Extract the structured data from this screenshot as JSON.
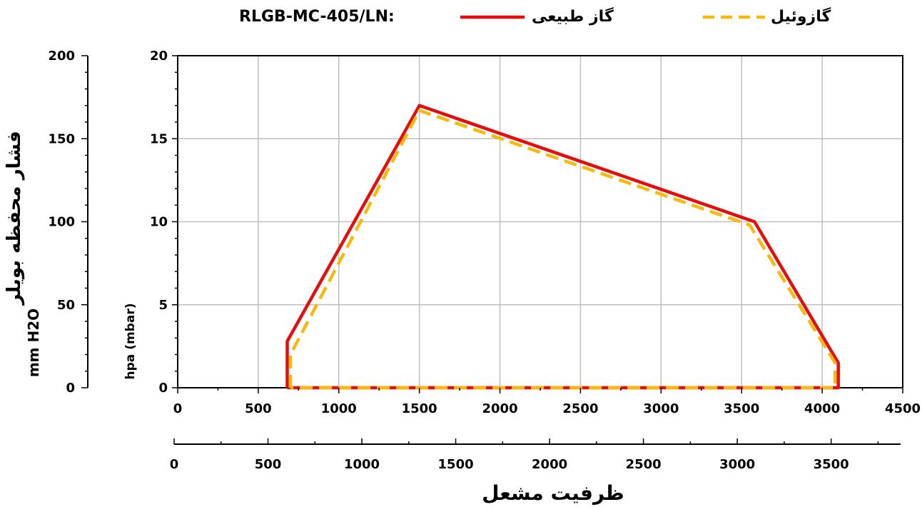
{
  "chart_data": {
    "type": "line",
    "title": "RLGB-MC-405/LN:",
    "legend": {
      "position": "top",
      "entries": [
        {
          "label": "گاز طبیعی",
          "color": "#e30e0e",
          "style": "solid"
        },
        {
          "label": "گازوئیل",
          "color": "#f5b90f",
          "style": "dashed"
        }
      ]
    },
    "primary_axis": {
      "ylabel": "hpa (mbar)",
      "ylim": [
        0,
        20
      ],
      "yticks": [
        0,
        5,
        10,
        15,
        20
      ],
      "ytick_labels": [
        "0",
        "5",
        "10",
        "15",
        "20"
      ]
    },
    "secondary_y_axis": {
      "ylabel": "mm H2O",
      "ylim": [
        0,
        200
      ],
      "yticks": [
        0,
        50,
        100,
        150,
        200
      ],
      "ytick_labels": [
        "0",
        "50",
        "100",
        "150",
        "200"
      ]
    },
    "y_title": "فشار محفظه بویلر",
    "x_axis": {
      "xlim": [
        0,
        4500
      ],
      "xticks": [
        0,
        500,
        1000,
        1500,
        2000,
        2500,
        3000,
        3500,
        4000,
        4500
      ],
      "xtick_labels": [
        "0",
        "500",
        "1000",
        "1500",
        "2000",
        "2500",
        "3000",
        "3500",
        "4000",
        "4500"
      ]
    },
    "secondary_x_axis": {
      "xlim": [
        0,
        3870
      ],
      "xticks": [
        0,
        500,
        1000,
        1500,
        2000,
        2500,
        3000,
        3500
      ],
      "xtick_labels": [
        "0",
        "500",
        "1000",
        "1500",
        "2000",
        "2500",
        "3000",
        "3500"
      ]
    },
    "xlabel": "ظرفیت مشعل",
    "grid": true,
    "series": [
      {
        "name": "گاز طبیعی",
        "color": "#e30e0e",
        "dashed": false,
        "points": [
          [
            680,
            0
          ],
          [
            680,
            2.8
          ],
          [
            1500,
            17
          ],
          [
            3580,
            10
          ],
          [
            4100,
            1.5
          ],
          [
            4100,
            0
          ],
          [
            680,
            0
          ]
        ]
      },
      {
        "name": "گازوئیل",
        "color": "#f5b90f",
        "dashed": true,
        "points": [
          [
            700,
            0
          ],
          [
            700,
            2.0
          ],
          [
            1500,
            16.7
          ],
          [
            3550,
            9.8
          ],
          [
            4080,
            1.5
          ],
          [
            4080,
            0
          ],
          [
            700,
            0
          ]
        ]
      }
    ]
  }
}
